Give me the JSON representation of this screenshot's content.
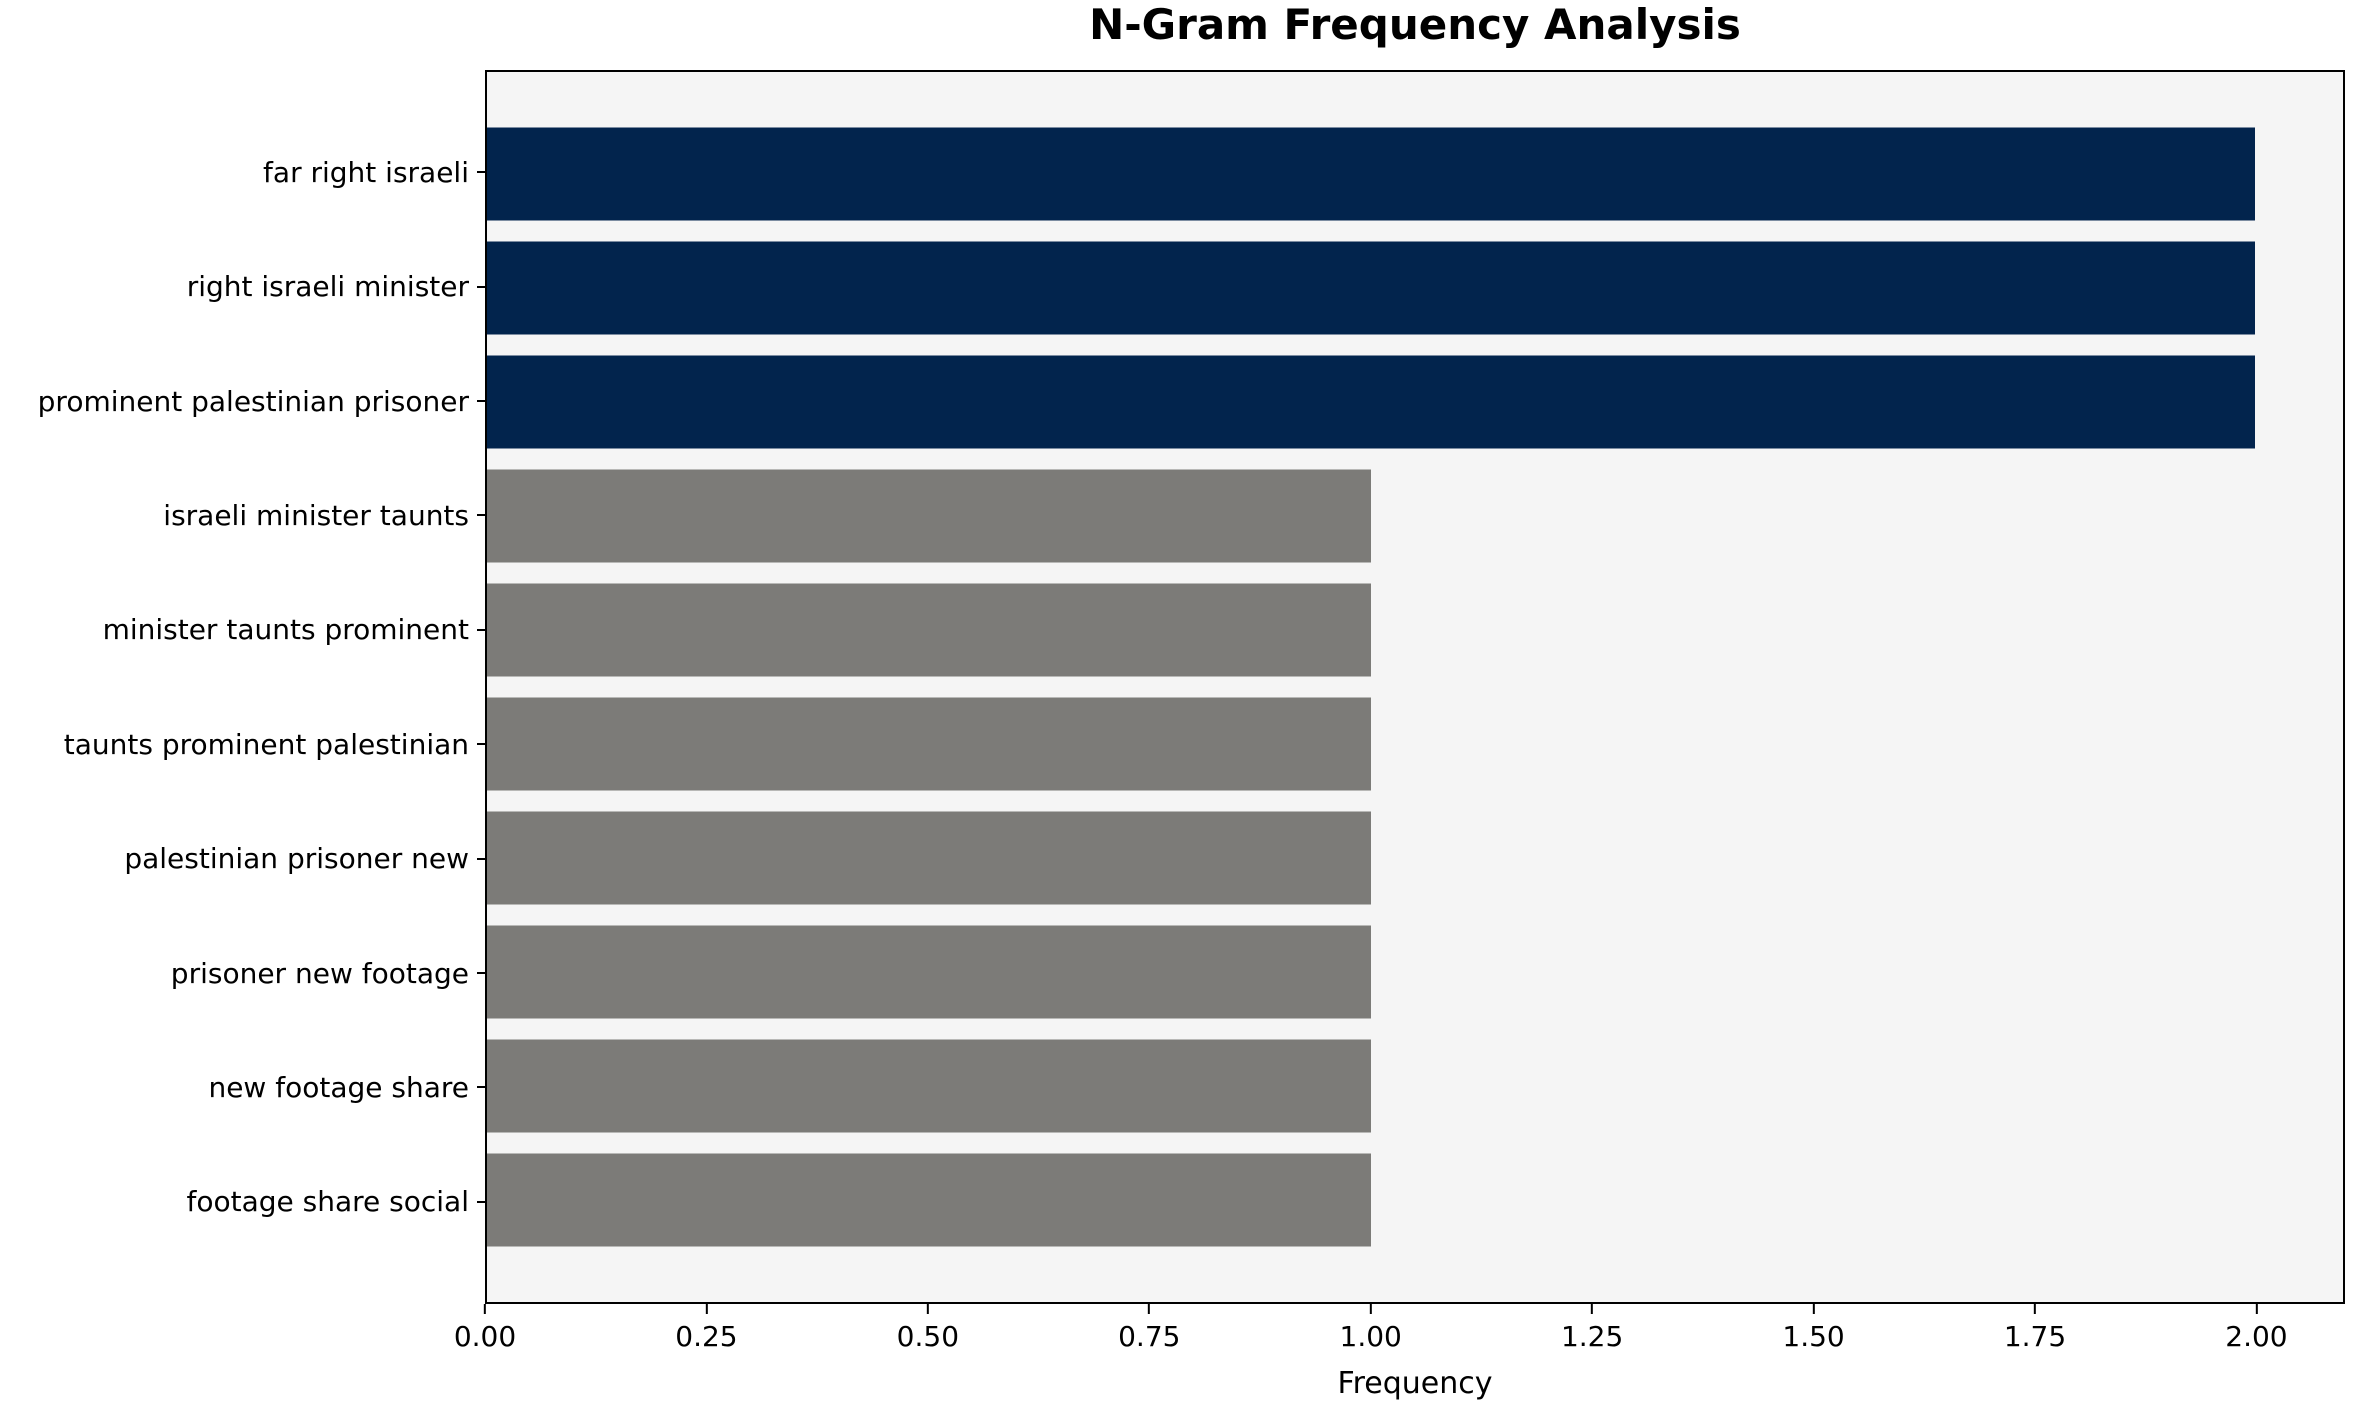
{
  "chart_data": {
    "type": "bar",
    "orientation": "horizontal",
    "title": "N-Gram Frequency Analysis",
    "xlabel": "Frequency",
    "ylabel": "",
    "categories": [
      "far right israeli",
      "right israeli minister",
      "prominent palestinian prisoner",
      "israeli minister taunts",
      "minister taunts prominent",
      "taunts prominent palestinian",
      "palestinian prisoner new",
      "prisoner new footage",
      "new footage share",
      "footage share social"
    ],
    "values": [
      2,
      2,
      2,
      1,
      1,
      1,
      1,
      1,
      1,
      1
    ],
    "bar_colors": [
      "#02244d",
      "#02244d",
      "#02244d",
      "#7c7b78",
      "#7c7b78",
      "#7c7b78",
      "#7c7b78",
      "#7c7b78",
      "#7c7b78",
      "#7c7b78"
    ],
    "xlim": [
      0,
      2.1
    ],
    "xticks": [
      "0.00",
      "0.25",
      "0.50",
      "0.75",
      "1.00",
      "1.25",
      "1.50",
      "1.75",
      "2.00"
    ],
    "xtick_values": [
      0,
      0.25,
      0.5,
      0.75,
      1.0,
      1.25,
      1.5,
      1.75,
      2.0
    ],
    "grid": false,
    "legend": null,
    "colors": {
      "highlight": "#02244d",
      "default": "#7c7b78",
      "plot_background": "#f5f5f5",
      "figure_background": "#ffffff",
      "spine": "#000000"
    }
  }
}
